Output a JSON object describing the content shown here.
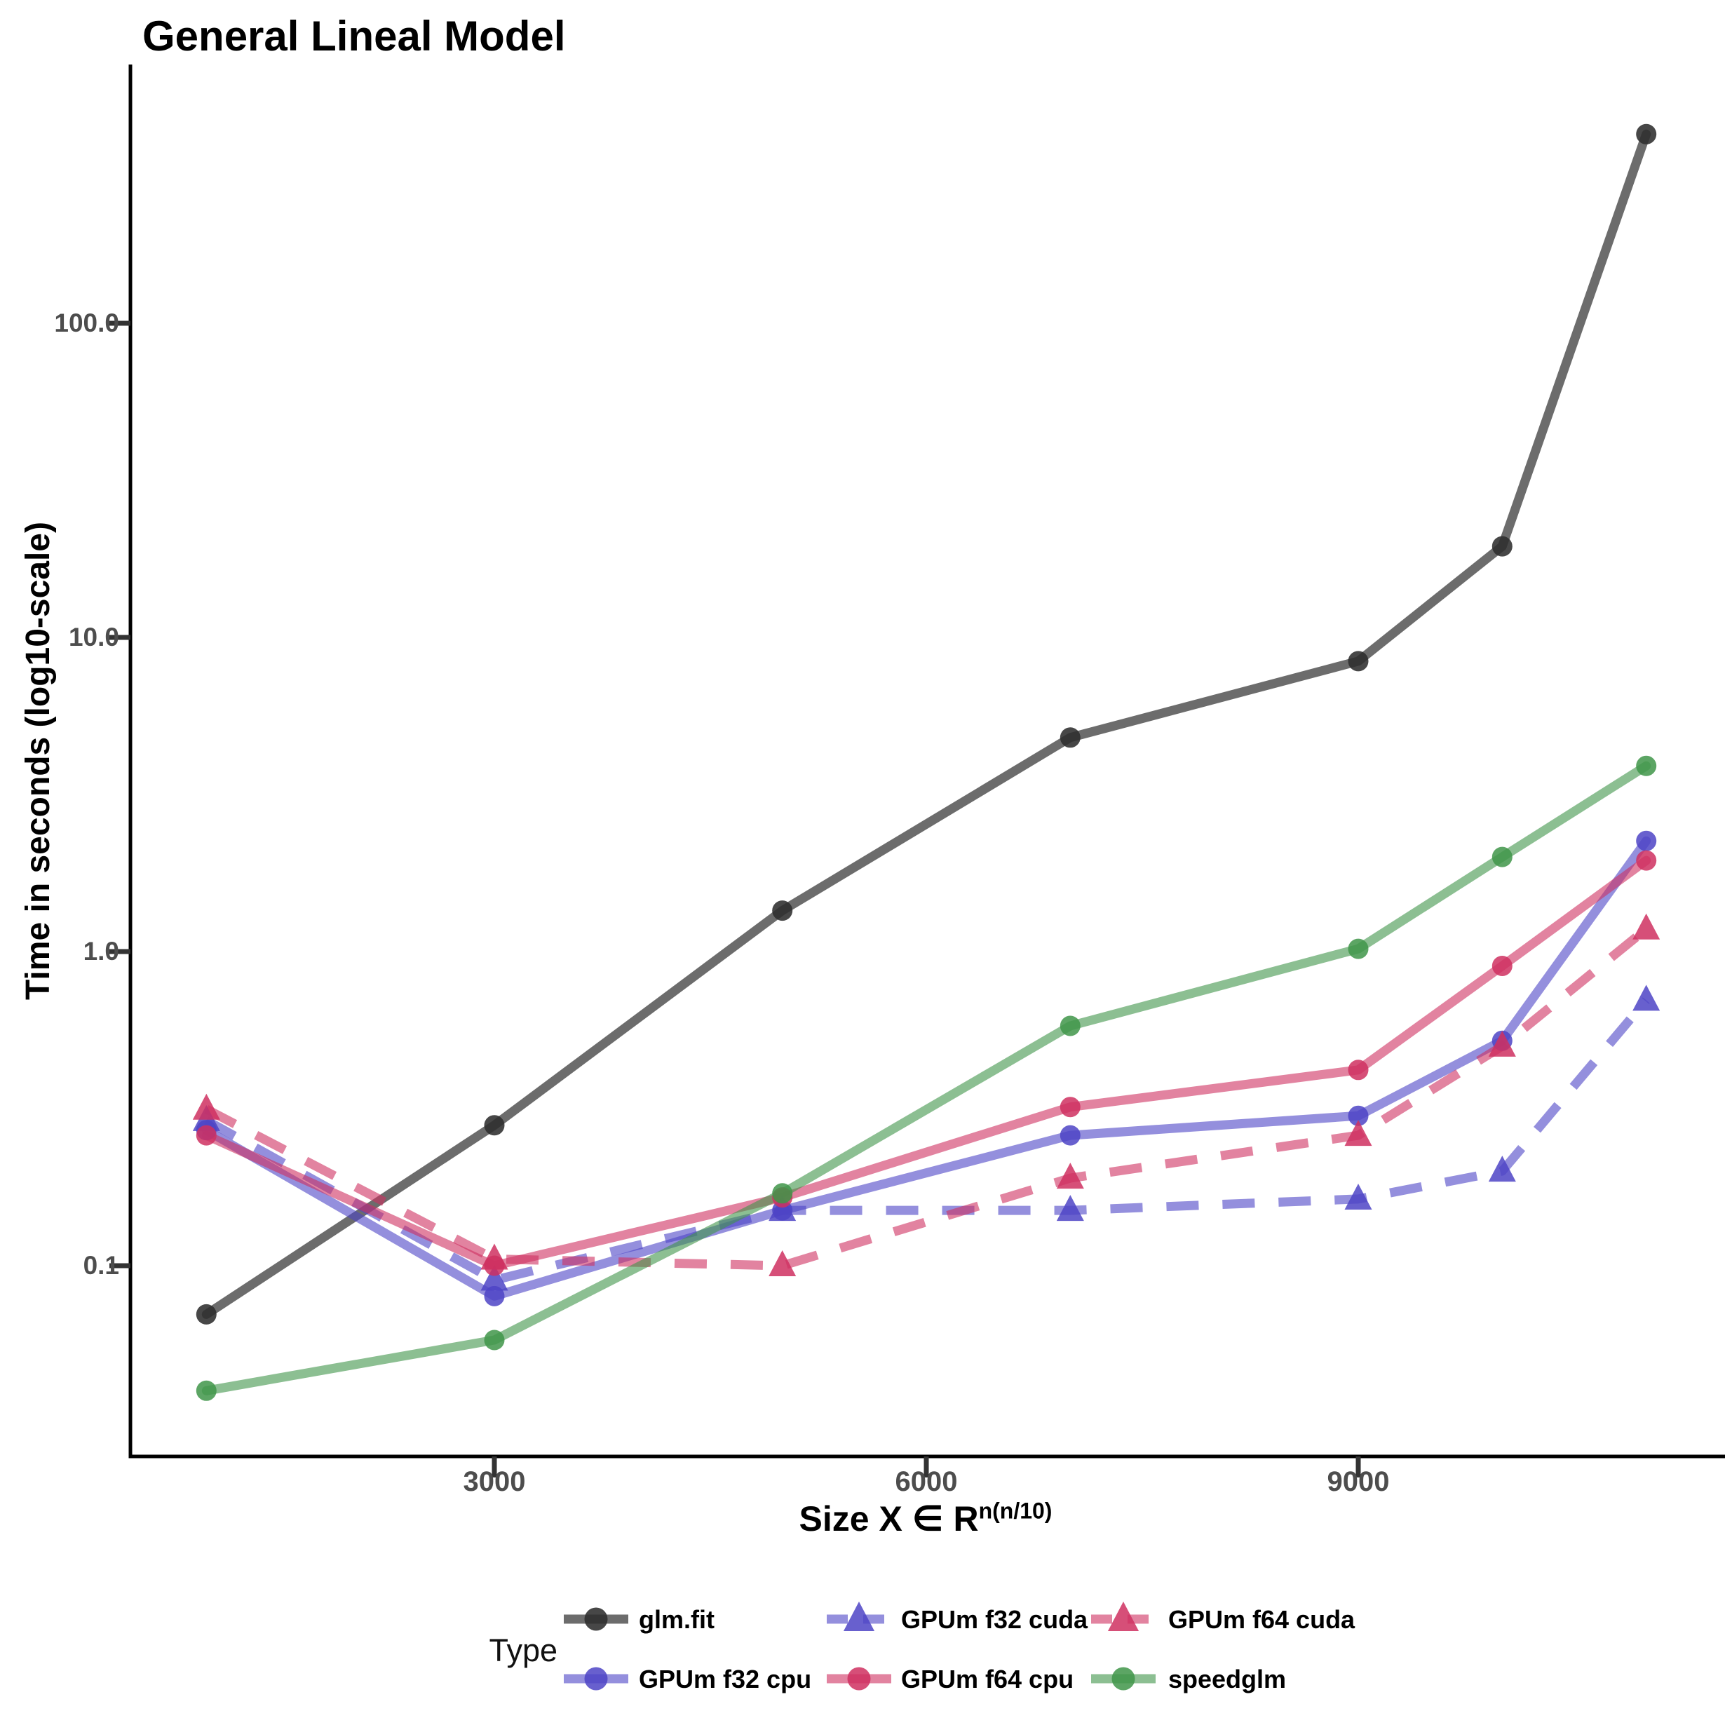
{
  "title": "General Lineal Model",
  "y_axis": {
    "label": "Time in seconds (log10-scale)",
    "tick_labels": [
      "100.0",
      "10.0",
      "1.0",
      "0.1"
    ]
  },
  "x_axis": {
    "label_base": "Size  X ∈ R",
    "label_sup": "n(n/10)",
    "tick_labels": [
      "3000",
      "6000",
      "9000"
    ]
  },
  "legend": {
    "title": "Type"
  },
  "chart_data": {
    "type": "line",
    "title": "General Lineal Model",
    "xlabel": "Size X ∈ R^(n(n/10))",
    "ylabel": "Time in seconds (log10-scale)",
    "y_scale": "log10",
    "grid": false,
    "legend_position": "bottom",
    "x": [
      1000,
      3000,
      5000,
      7000,
      9000,
      10000,
      11000
    ],
    "x_ticks": [
      3000,
      6000,
      9000
    ],
    "y_ticks": [
      100.0,
      10.0,
      1.0,
      0.1
    ],
    "xlim": [
      400,
      11600
    ],
    "ylim": [
      0.03,
      500
    ],
    "series": [
      {
        "name": "glm.fit",
        "color": "#2E2E2E",
        "marker": "circle",
        "linetype": "solid",
        "values": [
          0.07,
          0.28,
          1.35,
          4.8,
          8.4,
          19.5,
          400
        ]
      },
      {
        "name": "GPUm f32 cpu",
        "color": "#4D44C6",
        "marker": "circle",
        "linetype": "solid",
        "values": [
          0.27,
          0.08,
          0.15,
          0.26,
          0.3,
          0.52,
          2.25
        ]
      },
      {
        "name": "GPUm f32 cuda",
        "color": "#4D44C6",
        "marker": "triangle",
        "linetype": "dashed",
        "values": [
          0.29,
          0.09,
          0.15,
          0.15,
          0.163,
          0.2,
          0.7
        ]
      },
      {
        "name": "GPUm f64 cpu",
        "color": "#CF3060",
        "marker": "circle",
        "linetype": "solid",
        "values": [
          0.26,
          0.1,
          0.165,
          0.32,
          0.42,
          0.9,
          1.95
        ]
      },
      {
        "name": "GPUm f64 cuda",
        "color": "#CF3060",
        "marker": "triangle",
        "linetype": "dashed",
        "values": [
          0.315,
          0.105,
          0.1,
          0.19,
          0.26,
          0.5,
          1.18
        ]
      },
      {
        "name": "speedglm",
        "color": "#3F9549",
        "marker": "circle",
        "linetype": "solid",
        "values": [
          0.04,
          0.058,
          0.17,
          0.58,
          1.02,
          2.0,
          3.9
        ]
      }
    ]
  }
}
